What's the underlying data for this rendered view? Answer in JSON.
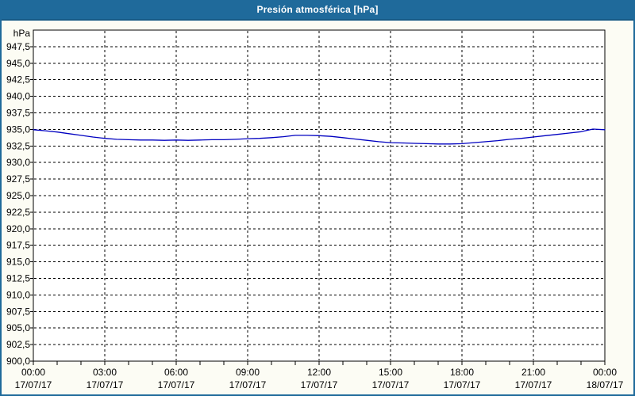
{
  "window": {
    "title": "Presión atmosférica [hPa]"
  },
  "colors": {
    "title_bar": "#1f6a9b",
    "title_bar_edge": "#175a86",
    "frame": "#1f6a9b",
    "page_bg": "#fcfcf4",
    "plot_bg": "#ffffff",
    "plot_border": "#000000",
    "grid": "#000000",
    "axis_text": "#000000",
    "line": "#0000c0"
  },
  "chart_data": {
    "type": "line",
    "title": "Presión atmosférica [hPa]",
    "y_unit_label": "hPa",
    "ylim": [
      900,
      950
    ],
    "xlim_hours": [
      0,
      24
    ],
    "grid_style": "dashed",
    "y_ticks": [
      {
        "v": 947.5,
        "label": "947,5"
      },
      {
        "v": 945.0,
        "label": "945,0"
      },
      {
        "v": 942.5,
        "label": "942,5"
      },
      {
        "v": 940.0,
        "label": "940,0"
      },
      {
        "v": 937.5,
        "label": "937,5"
      },
      {
        "v": 935.0,
        "label": "935,0"
      },
      {
        "v": 932.5,
        "label": "932,5"
      },
      {
        "v": 930.0,
        "label": "930,0"
      },
      {
        "v": 927.5,
        "label": "927,5"
      },
      {
        "v": 925.0,
        "label": "925,0"
      },
      {
        "v": 922.5,
        "label": "922,5"
      },
      {
        "v": 920.0,
        "label": "920,0"
      },
      {
        "v": 917.5,
        "label": "917,5"
      },
      {
        "v": 915.0,
        "label": "915,0"
      },
      {
        "v": 912.5,
        "label": "912,5"
      },
      {
        "v": 910.0,
        "label": "910,0"
      },
      {
        "v": 907.5,
        "label": "907,5"
      },
      {
        "v": 905.0,
        "label": "905,0"
      },
      {
        "v": 902.5,
        "label": "902,5"
      },
      {
        "v": 900.0,
        "label": "900,0"
      }
    ],
    "x_ticks": [
      {
        "hour": 0,
        "time": "00:00",
        "date": "17/07/17"
      },
      {
        "hour": 3,
        "time": "03:00",
        "date": "17/07/17"
      },
      {
        "hour": 6,
        "time": "06:00",
        "date": "17/07/17"
      },
      {
        "hour": 9,
        "time": "09:00",
        "date": "17/07/17"
      },
      {
        "hour": 12,
        "time": "12:00",
        "date": "17/07/17"
      },
      {
        "hour": 15,
        "time": "15:00",
        "date": "17/07/17"
      },
      {
        "hour": 18,
        "time": "18:00",
        "date": "17/07/17"
      },
      {
        "hour": 21,
        "time": "21:00",
        "date": "17/07/17"
      },
      {
        "hour": 24,
        "time": "00:00",
        "date": "18/07/17"
      }
    ],
    "x_minor_tick_every_hours": 1,
    "x_grid_hours": [
      3,
      6,
      9,
      12,
      15,
      18,
      21
    ],
    "series": [
      {
        "name": "Presión atmosférica [hPa]",
        "color": "#0000c0",
        "x_hours": [
          0,
          0.5,
          1,
          1.5,
          2,
          2.5,
          3,
          3.5,
          4,
          4.5,
          5,
          5.5,
          6,
          6.5,
          7,
          7.5,
          8,
          8.5,
          9,
          9.5,
          10,
          10.5,
          11,
          11.5,
          12,
          12.5,
          13,
          13.5,
          14,
          14.5,
          15,
          15.5,
          16,
          16.5,
          17,
          17.5,
          18,
          18.5,
          19,
          19.5,
          20,
          20.5,
          21,
          21.5,
          22,
          22.5,
          23,
          23.5,
          24
        ],
        "values": [
          934.95,
          934.8,
          934.6,
          934.35,
          934.1,
          933.85,
          933.65,
          933.5,
          933.45,
          933.4,
          933.4,
          933.35,
          933.4,
          933.35,
          933.4,
          933.45,
          933.45,
          933.5,
          933.6,
          933.65,
          933.75,
          933.9,
          934.1,
          934.1,
          934.05,
          933.95,
          933.75,
          933.55,
          933.35,
          933.15,
          933.0,
          932.95,
          932.9,
          932.85,
          932.8,
          932.8,
          932.85,
          933.0,
          933.15,
          933.3,
          933.5,
          933.65,
          933.85,
          934.05,
          934.25,
          934.45,
          934.65,
          935.05,
          934.95
        ]
      }
    ]
  }
}
